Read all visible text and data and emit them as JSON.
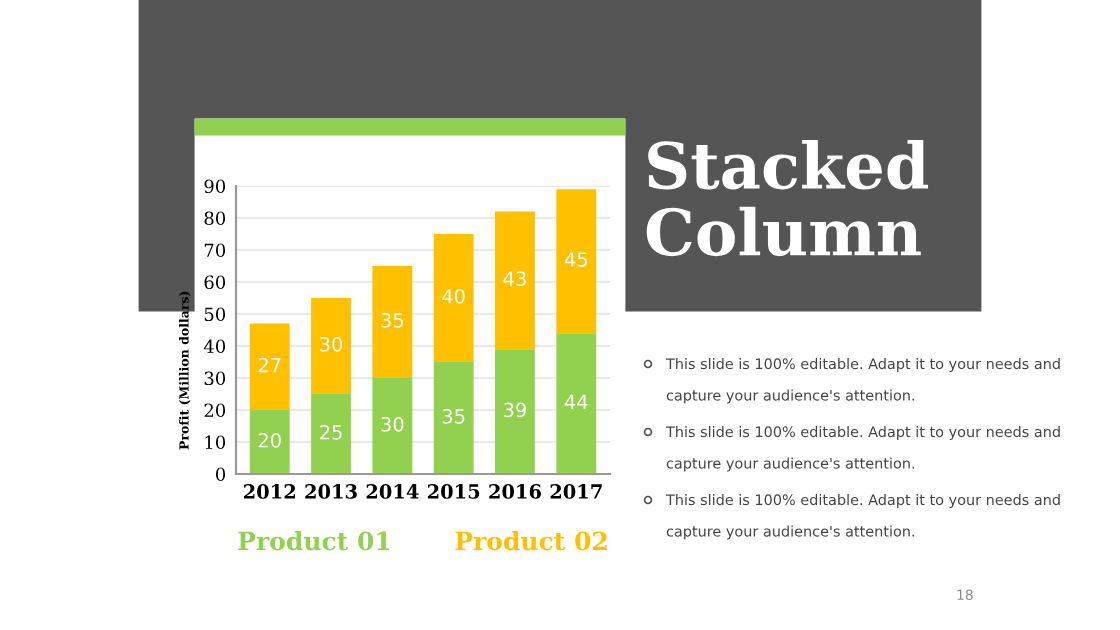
{
  "chart_data": {
    "type": "bar",
    "stacked": true,
    "title": "Stacked Column",
    "ylabel": "Profit (Million dollars)",
    "categories": [
      "2012",
      "2013",
      "2014",
      "2015",
      "2016",
      "2017"
    ],
    "series": [
      {
        "name": "Product 01",
        "color": "#92d050",
        "values": [
          20,
          25,
          30,
          35,
          39,
          44
        ]
      },
      {
        "name": "Product 02",
        "color": "#ffc000",
        "values": [
          27,
          30,
          35,
          40,
          43,
          45
        ]
      }
    ],
    "ylim": [
      0,
      90
    ],
    "yticks": [
      0,
      10,
      20,
      30,
      40,
      50,
      60,
      70,
      80,
      90
    ],
    "grid": "y",
    "data_labels": true,
    "legend": "bottom",
    "annotations": [
      "This slide is 100% editable. Adapt it to your needs and capture your audience's attention.",
      "This slide is 100% editable. Adapt it to your needs and capture your audience's attention.",
      "This slide is 100% editable. Adapt it to your needs and capture your audience's attention.",
      "18"
    ]
  }
}
